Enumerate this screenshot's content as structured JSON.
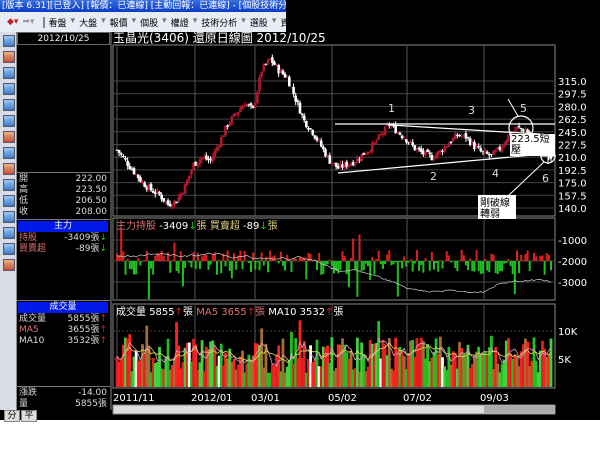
{
  "window": {
    "title": "[版本 6.31][已登入] [報價：已連線] [主動回報：已連線] - [個股技術分"
  },
  "toolbar": {
    "items": [
      "看盤",
      "大盤",
      "報價",
      "個股",
      "權證",
      "技術分析",
      "選股",
      "資訊"
    ]
  },
  "left_panel": {
    "date": "2012/10/25",
    "ohlc": [
      {
        "label": "開",
        "value": "222.00"
      },
      {
        "label": "高",
        "value": "223.50"
      },
      {
        "label": "低",
        "value": "206.50"
      },
      {
        "label": "收",
        "value": "208.00"
      }
    ],
    "main_force": {
      "header": "主力",
      "rows": [
        {
          "label": "持股",
          "value": "-3409張",
          "dir": "down"
        },
        {
          "label": "買賣超",
          "value": "-89張",
          "dir": "down"
        }
      ]
    },
    "volume": {
      "header": "成交量",
      "rows": [
        {
          "label": "成交量",
          "value": "5855張",
          "dir": "up"
        },
        {
          "label": "MA5",
          "value": "3655張",
          "dir": "up"
        },
        {
          "label": "MA10",
          "value": "3532張",
          "dir": "up"
        }
      ]
    },
    "footer": [
      {
        "label": "漲跌",
        "value": "-14.00"
      },
      {
        "label": "量",
        "value": "5855張"
      }
    ],
    "tabs": [
      "分",
      "平"
    ]
  },
  "chart_data": {
    "type": "candlestick",
    "title": "玉晶光(3406)  還原日線圖  2012/10/25",
    "price_ticks": [
      "315.0",
      "297.5",
      "280.0",
      "262.5",
      "245.0",
      "227.5",
      "210.0",
      "192.5",
      "175.0",
      "157.5",
      "140.0"
    ],
    "ylim": [
      140,
      315
    ],
    "date_ticks": [
      "2011/11",
      "2012/01",
      "03/01",
      "05/02",
      "07/02",
      "09/03"
    ],
    "weekly_close": [
      220,
      205,
      190,
      175,
      165,
      158,
      145,
      150,
      170,
      200,
      210,
      205,
      230,
      255,
      270,
      285,
      275,
      330,
      345,
      330,
      320,
      290,
      260,
      245,
      225,
      205,
      195,
      200,
      205,
      215,
      225,
      240,
      255,
      245,
      235,
      222,
      215,
      210,
      218,
      230,
      240,
      238,
      225,
      215,
      212,
      222,
      240,
      250,
      248,
      235,
      223,
      208
    ],
    "annotations": {
      "labels": [
        "1",
        "2",
        "3",
        "4",
        "5",
        "6"
      ],
      "resistance_label": "223.5短壓",
      "resistance": 223.5,
      "note": "剛破線轉弱"
    },
    "indicator": {
      "title_main": "主力持股",
      "main_value": "-3409",
      "title_net": "買賣超",
      "net_value": "-89",
      "unit": "張",
      "ticks": [
        "-1000",
        "-2000",
        "-3000"
      ]
    },
    "volume": {
      "label": "成交量",
      "value": "5855",
      "ma5_label": "MA5",
      "ma5": "3655",
      "ma10_label": "MA10",
      "ma10": "3532",
      "unit": "張",
      "ticks": [
        "10K",
        "5K"
      ]
    },
    "colors": {
      "up": "#e02020",
      "down": "#20c020",
      "candle_up": "#b01830",
      "candle_down": "#ffffff",
      "ma5": "#e06060",
      "ma10": "#ffffff",
      "grid": "#555555"
    }
  }
}
